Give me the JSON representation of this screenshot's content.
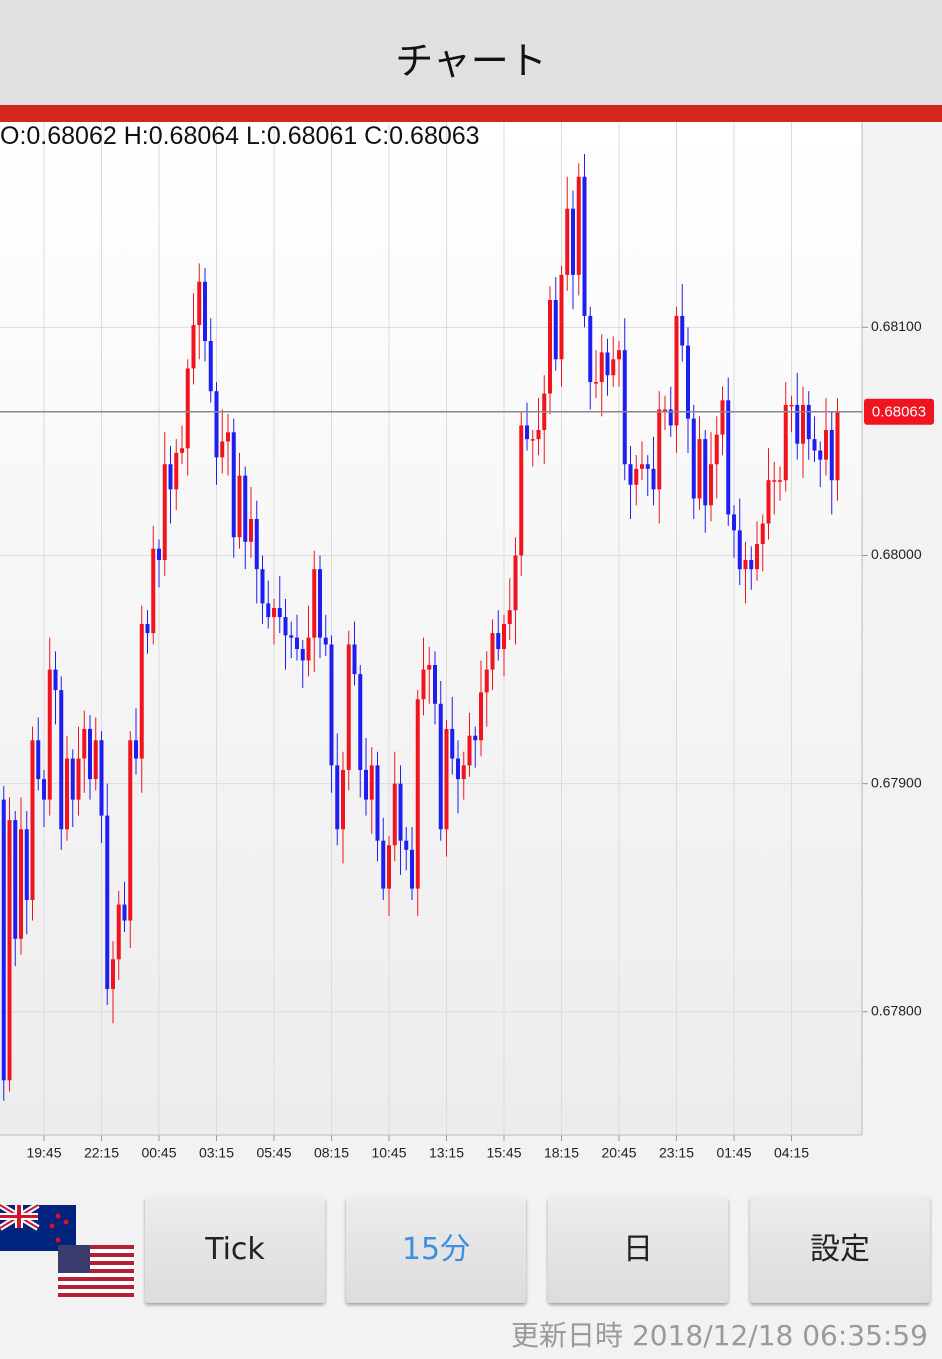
{
  "header": {
    "title": "チャート"
  },
  "ohlc_info": "O:0.68062 H:0.68064 L:0.68061 C:0.68063",
  "chart_data": {
    "type": "candlestick",
    "categories": [
      null,
      null,
      null,
      null,
      null,
      null,
      null,
      "19:45",
      null,
      null,
      null,
      null,
      null,
      null,
      null,
      null,
      null,
      "22:15",
      null,
      null,
      null,
      null,
      null,
      null,
      null,
      null,
      null,
      "00:45",
      null,
      null,
      null,
      null,
      null,
      null,
      null,
      null,
      null,
      "03:15",
      null,
      null,
      null,
      null,
      null,
      null,
      null,
      null,
      null,
      "05:45",
      null,
      null,
      null,
      null,
      null,
      null,
      null,
      null,
      null,
      "08:15",
      null,
      null,
      null,
      null,
      null,
      null,
      null,
      null,
      null,
      "10:45",
      null,
      null,
      null,
      null,
      null,
      null,
      null,
      null,
      null,
      "13:15",
      null,
      null,
      null,
      null,
      null,
      null,
      null,
      null,
      null,
      "15:45",
      null,
      null,
      null,
      null,
      null,
      null,
      null,
      null,
      null,
      "18:15",
      null,
      null,
      null,
      null,
      null,
      null,
      null,
      null,
      null,
      "20:45",
      null,
      null,
      null,
      null,
      null,
      null,
      null,
      null,
      null,
      "23:15",
      null,
      null,
      null,
      null,
      null,
      null,
      null,
      null,
      null,
      "01:45",
      null,
      null,
      null,
      null,
      null,
      null,
      null,
      null,
      null,
      "04:15",
      null,
      null,
      null,
      null,
      null,
      null,
      null,
      null
    ],
    "open": [
      0.67893,
      0.6777,
      0.67884,
      0.67832,
      0.6788,
      0.67849,
      0.67919,
      0.67902,
      0.67893,
      0.6795,
      0.67941,
      0.6788,
      0.67911,
      0.67893,
      0.67911,
      0.67924,
      0.67902,
      0.67919,
      0.67886,
      0.6781,
      0.67823,
      0.67847,
      0.6784,
      0.67919,
      0.67911,
      0.6797,
      0.67966,
      0.68003,
      0.67998,
      0.6804,
      0.68029,
      0.68045,
      0.68047,
      0.68082,
      0.68101,
      0.6812,
      0.68094,
      0.68072,
      0.68043,
      0.6805,
      0.68054,
      0.68008,
      0.68035,
      0.68006,
      0.68016,
      0.67994,
      0.67979,
      0.67973,
      0.67977,
      0.67973,
      0.67965,
      0.67964,
      0.67959,
      0.67954,
      0.67964,
      0.67994,
      0.67964,
      0.67961,
      0.67908,
      0.6788,
      0.67906,
      0.67961,
      0.67948,
      0.67906,
      0.67893,
      0.67908,
      0.67875,
      0.67854,
      0.67873,
      0.679,
      0.67875,
      0.67871,
      0.67854,
      0.67937,
      0.6795,
      0.67952,
      0.67935,
      0.6788,
      0.67924,
      0.67911,
      0.67902,
      0.67908,
      0.67921,
      0.67919,
      0.6794,
      0.6795,
      0.67966,
      0.67959,
      0.6797,
      0.67976,
      0.68,
      0.68057,
      0.68051,
      0.68051,
      0.68055,
      0.68071,
      0.68112,
      0.68086,
      0.68123,
      0.68152,
      0.68123,
      0.68166,
      0.68105,
      0.68076,
      0.68076,
      0.68089,
      0.68079,
      0.68086,
      0.6809,
      0.6804,
      0.68031,
      0.68038,
      0.6804,
      0.68038,
      0.68029,
      0.68064,
      0.68064,
      0.68057,
      0.68105,
      0.68092,
      0.6806,
      0.68025,
      0.68051,
      0.68022,
      0.6804,
      0.68053,
      0.68068,
      0.68018,
      0.68011,
      0.67994,
      0.67998,
      0.67994,
      0.68005,
      0.68014,
      0.68033,
      0.68033,
      0.68033,
      0.68066,
      0.68066,
      0.68049,
      0.68066,
      0.68051,
      0.68046,
      0.68042,
      0.68055,
      0.68033
    ],
    "high": [
      0.67899,
      0.67894,
      0.67888,
      0.67894,
      0.67888,
      0.67925,
      0.67929,
      0.67906,
      0.67964,
      0.67958,
      0.67947,
      0.67921,
      0.67915,
      0.67925,
      0.67932,
      0.6793,
      0.67929,
      0.67923,
      0.679,
      0.67831,
      0.67853,
      0.67857,
      0.67923,
      0.67933,
      0.67978,
      0.67976,
      0.68013,
      0.68007,
      0.68054,
      0.68048,
      0.68051,
      0.68057,
      0.68086,
      0.68115,
      0.68128,
      0.68126,
      0.68104,
      0.68076,
      0.68064,
      0.68062,
      0.6806,
      0.68045,
      0.68039,
      0.6803,
      0.68024,
      0.68,
      0.67989,
      0.67981,
      0.67991,
      0.67981,
      0.67971,
      0.67974,
      0.67963,
      0.67978,
      0.68002,
      0.68,
      0.67974,
      0.67965,
      0.67922,
      0.67914,
      0.67967,
      0.67971,
      0.67952,
      0.6792,
      0.67916,
      0.67914,
      0.67885,
      0.67877,
      0.67914,
      0.67908,
      0.67881,
      0.67881,
      0.67941,
      0.67964,
      0.6796,
      0.67958,
      0.67945,
      0.67928,
      0.67938,
      0.67919,
      0.67914,
      0.67931,
      0.67925,
      0.67954,
      0.67958,
      0.67972,
      0.67976,
      0.67974,
      0.6799,
      0.68008,
      0.68063,
      0.68067,
      0.68055,
      0.68069,
      0.68079,
      0.68118,
      0.68122,
      0.68127,
      0.68166,
      0.6816,
      0.68172,
      0.68176,
      0.68109,
      0.6809,
      0.68097,
      0.68095,
      0.68096,
      0.68094,
      0.68104,
      0.68048,
      0.68044,
      0.6805,
      0.68044,
      0.68052,
      0.68072,
      0.6807,
      0.68074,
      0.68109,
      0.68119,
      0.681,
      0.68066,
      0.68061,
      0.68055,
      0.68054,
      0.68061,
      0.68074,
      0.68078,
      0.68022,
      0.68025,
      0.68006,
      0.68004,
      0.68015,
      0.68018,
      0.68047,
      0.68041,
      0.68039,
      0.68076,
      0.6807,
      0.6808,
      0.68074,
      0.68072,
      0.68061,
      0.6805,
      0.68069,
      0.68063,
      0.68069
    ],
    "low": [
      0.67761,
      0.67765,
      0.6782,
      0.67825,
      0.67834,
      0.6784,
      0.67897,
      0.67881,
      0.67886,
      0.67926,
      0.67871,
      0.67875,
      0.67881,
      0.67886,
      0.67896,
      0.67893,
      0.67897,
      0.67874,
      0.67803,
      0.67795,
      0.67814,
      0.67835,
      0.67828,
      0.67904,
      0.67896,
      0.67957,
      0.67961,
      0.67986,
      0.67991,
      0.68014,
      0.6802,
      0.6804,
      0.68035,
      0.68075,
      0.68086,
      0.68085,
      0.68067,
      0.68031,
      0.68036,
      0.68035,
      0.67999,
      0.68003,
      0.67994,
      0.67999,
      0.67979,
      0.6797,
      0.67968,
      0.67961,
      0.67966,
      0.6795,
      0.67955,
      0.67954,
      0.67942,
      0.67947,
      0.67949,
      0.67955,
      0.67956,
      0.67896,
      0.67873,
      0.67865,
      0.67897,
      0.67943,
      0.67894,
      0.67886,
      0.67878,
      0.67866,
      0.67849,
      0.67842,
      0.67866,
      0.6786,
      0.67862,
      0.67849,
      0.67842,
      0.6793,
      0.67935,
      0.67926,
      0.67875,
      0.67868,
      0.67904,
      0.67887,
      0.67893,
      0.67903,
      0.67907,
      0.67912,
      0.67925,
      0.67941,
      0.67954,
      0.67947,
      0.67963,
      0.67961,
      0.67991,
      0.68046,
      0.68039,
      0.68044,
      0.6804,
      0.68062,
      0.68081,
      0.68074,
      0.68116,
      0.68108,
      0.68114,
      0.681,
      0.68064,
      0.68069,
      0.68061,
      0.6807,
      0.68074,
      0.68074,
      0.68033,
      0.68016,
      0.68022,
      0.68033,
      0.68026,
      0.68022,
      0.68014,
      0.68055,
      0.68052,
      0.68045,
      0.68085,
      0.68045,
      0.68016,
      0.6802,
      0.6801,
      0.68015,
      0.68025,
      0.68044,
      0.68013,
      0.67999,
      0.67987,
      0.67979,
      0.67985,
      0.67989,
      0.67993,
      0.68007,
      0.68018,
      0.68024,
      0.68028,
      0.68054,
      0.68042,
      0.68034,
      0.68042,
      0.68041,
      0.6803,
      0.68035,
      0.68018,
      0.68024
    ],
    "close": [
      0.6777,
      0.67884,
      0.67832,
      0.6788,
      0.67849,
      0.67919,
      0.67902,
      0.67893,
      0.6795,
      0.67941,
      0.6788,
      0.67911,
      0.67893,
      0.67911,
      0.67924,
      0.67902,
      0.67919,
      0.67886,
      0.6781,
      0.67823,
      0.67847,
      0.6784,
      0.67919,
      0.67911,
      0.6797,
      0.67966,
      0.68003,
      0.67998,
      0.6804,
      0.68029,
      0.68045,
      0.68047,
      0.68082,
      0.68101,
      0.6812,
      0.68094,
      0.68072,
      0.68043,
      0.6805,
      0.68054,
      0.68008,
      0.68035,
      0.68006,
      0.68016,
      0.67994,
      0.67979,
      0.67973,
      0.67977,
      0.67973,
      0.67965,
      0.67964,
      0.67959,
      0.67954,
      0.67964,
      0.67994,
      0.67964,
      0.67961,
      0.67908,
      0.6788,
      0.67906,
      0.67961,
      0.67948,
      0.67906,
      0.67893,
      0.67908,
      0.67875,
      0.67854,
      0.67873,
      0.679,
      0.67875,
      0.67871,
      0.67854,
      0.67937,
      0.6795,
      0.67952,
      0.67935,
      0.6788,
      0.67924,
      0.67911,
      0.67902,
      0.67908,
      0.67921,
      0.67919,
      0.6794,
      0.6795,
      0.67966,
      0.67959,
      0.6797,
      0.67976,
      0.68,
      0.68057,
      0.68051,
      0.68051,
      0.68055,
      0.68071,
      0.68112,
      0.68086,
      0.68123,
      0.68152,
      0.68123,
      0.68166,
      0.68105,
      0.68076,
      0.68076,
      0.68089,
      0.68079,
      0.68086,
      0.6809,
      0.6804,
      0.68031,
      0.68038,
      0.6804,
      0.68038,
      0.68029,
      0.68064,
      0.68064,
      0.68057,
      0.68105,
      0.68092,
      0.6806,
      0.68025,
      0.68051,
      0.68022,
      0.6804,
      0.68053,
      0.68068,
      0.68018,
      0.68011,
      0.67994,
      0.67998,
      0.67994,
      0.68005,
      0.68014,
      0.68033,
      0.68033,
      0.68033,
      0.68066,
      0.68066,
      0.68049,
      0.68066,
      0.68051,
      0.68046,
      0.68042,
      0.68055,
      0.68033,
      0.68063
    ],
    "up_color": "#f0141e",
    "down_color": "#1e1ef0",
    "ylim": [
      0.67746,
      0.6819
    ],
    "yticks": [
      {
        "value": 0.678,
        "label": "0.67800"
      },
      {
        "value": 0.679,
        "label": "0.67900"
      },
      {
        "value": 0.68,
        "label": "0.68000"
      },
      {
        "value": 0.681,
        "label": "0.68100"
      }
    ],
    "current_price": 0.68063,
    "grid": true
  },
  "buttons": [
    "Tick",
    "15分",
    "日",
    "設定"
  ],
  "footer": {
    "label": "更新日時",
    "timestamp": "2018/12/18 06:35:59"
  }
}
